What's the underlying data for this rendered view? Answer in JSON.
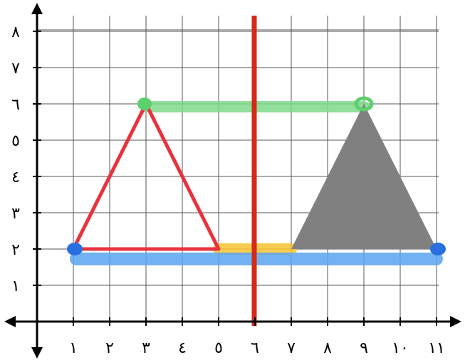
{
  "diagram": {
    "grid": {
      "x_min": 0,
      "x_max": 11.5,
      "y_min": 0,
      "y_max": 8.5,
      "show_grid": true
    },
    "x_tick_labels": [
      "١",
      "٢",
      "٣",
      "٤",
      "٥",
      "٦",
      "٧",
      "٨",
      "٩",
      "١٠",
      "١١"
    ],
    "y_tick_labels": [
      "١",
      "٢",
      "٣",
      "٤",
      "٥",
      "٦",
      "٧",
      "٨"
    ],
    "x_tick_values": [
      1,
      2,
      3,
      4,
      5,
      6,
      7,
      8,
      9,
      10,
      11
    ],
    "y_tick_values": [
      1,
      2,
      3,
      4,
      5,
      6,
      7,
      8
    ],
    "red_triangle": {
      "vertices": [
        [
          1,
          2
        ],
        [
          3,
          6
        ],
        [
          5,
          2
        ]
      ],
      "color": "#e8333f"
    },
    "gray_triangle": {
      "vertices": [
        [
          7,
          2
        ],
        [
          9,
          6
        ],
        [
          11,
          2
        ]
      ],
      "color": "#808080"
    },
    "mirror_line": {
      "x": 6,
      "color": "#d42a16"
    },
    "highlights": [
      {
        "id": "green",
        "from": [
          3,
          6
        ],
        "to": [
          9,
          6
        ],
        "color": "#7fd98a"
      },
      {
        "id": "yellow",
        "from": [
          5,
          2
        ],
        "to": [
          7,
          2
        ],
        "color": "#f7c531"
      },
      {
        "id": "blue",
        "from": [
          1,
          2
        ],
        "to": [
          11,
          2
        ],
        "color": "#5aa5f0"
      }
    ],
    "colors": {
      "grid": "#555555",
      "axis": "#000000",
      "blue_dot": "#2a6fe0",
      "green_dot": "#5ccf6e"
    }
  }
}
